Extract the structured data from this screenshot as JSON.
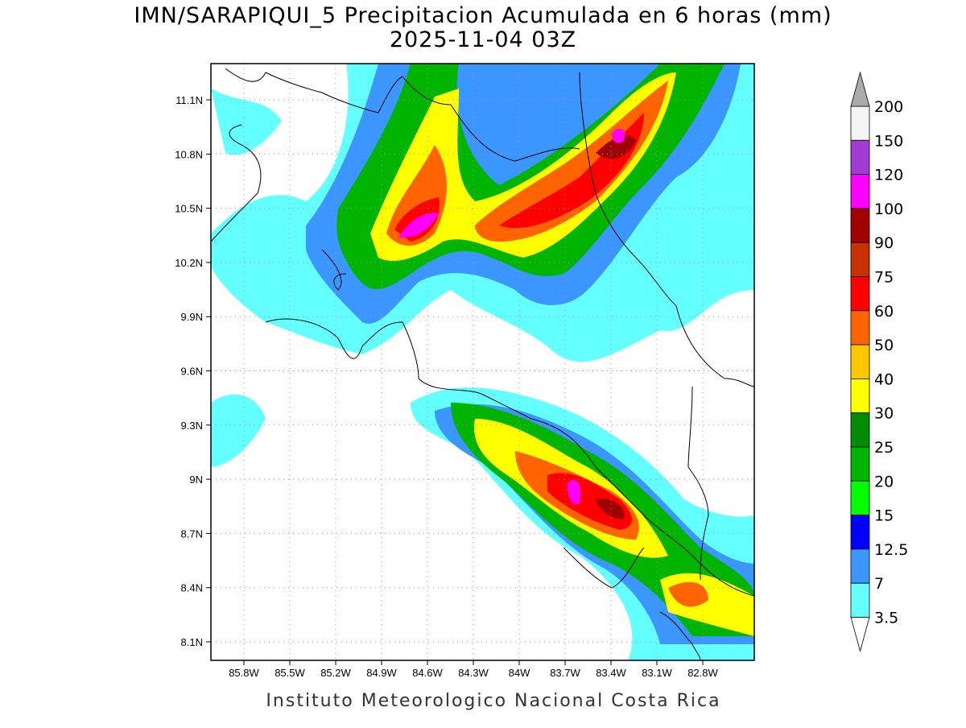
{
  "title": "IMN/SARAPIQUI_5 Precipitacion Acumulada en 6 horas (mm)",
  "subtitle": "2025-11-04 03Z",
  "map": {
    "lat_labels": [
      "11.1N",
      "10.8N",
      "10.5N",
      "10.2N",
      "9.9N",
      "9.6N",
      "9.3N",
      "9N",
      "8.7N",
      "8.4N",
      "8.1N"
    ],
    "lon_labels": [
      "85.8W",
      "85.5W",
      "85.2W",
      "84.9W",
      "84.6W",
      "84.3W",
      "84W",
      "83.7W",
      "83.4W",
      "83.1W",
      "82.8W"
    ]
  },
  "colorbar": {
    "labels": [
      "200",
      "150",
      "120",
      "100",
      "90",
      "75",
      "60",
      "50",
      "40",
      "30",
      "25",
      "20",
      "15",
      "12.5",
      "7",
      "3.5"
    ],
    "colors": [
      "#f5f5f5",
      "#a03cd2",
      "#ff00ff",
      "#a00000",
      "#c83200",
      "#ff0000",
      "#ff6400",
      "#ffc800",
      "#ffff00",
      "#008c00",
      "#00b400",
      "#00ff00",
      "#0000ff",
      "#3c96ff",
      "#64ffff"
    ],
    "over_color": "#aaaaaa",
    "under_color": "#ffffff"
  },
  "footer": "Instituto Meteorologico Nacional Costa Rica"
}
